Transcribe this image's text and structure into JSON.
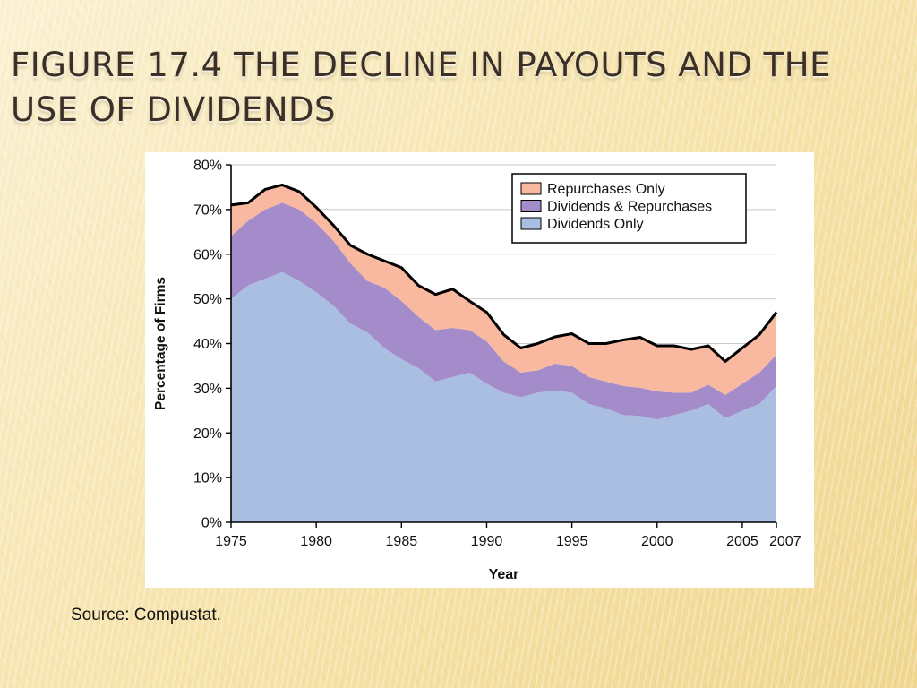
{
  "slide": {
    "title": "Figure 17.4  The Decline in Payouts and the Use of Dividends",
    "source": "Source: Compustat."
  },
  "chart_data": {
    "type": "area",
    "title": "",
    "xlabel": "Year",
    "ylabel": "Percentage of Firms",
    "xlim": [
      1975,
      2007
    ],
    "ylim": [
      0,
      80
    ],
    "x_ticks": [
      1975,
      1980,
      1985,
      1990,
      1995,
      2000,
      2005,
      2007
    ],
    "y_ticks": [
      {
        "value": 0,
        "label": "0%"
      },
      {
        "value": 10,
        "label": "10%"
      },
      {
        "value": 20,
        "label": "20%"
      },
      {
        "value": 30,
        "label": "30%"
      },
      {
        "value": 40,
        "label": "40%"
      },
      {
        "value": 50,
        "label": "50%"
      },
      {
        "value": 60,
        "label": "60%"
      },
      {
        "value": 70,
        "label": "70%"
      },
      {
        "value": 80,
        "label": "80%"
      }
    ],
    "grid": true,
    "stacked": true,
    "legend_position": "top-right",
    "x": [
      1975,
      1976,
      1977,
      1978,
      1979,
      1980,
      1981,
      1982,
      1983,
      1984,
      1985,
      1986,
      1987,
      1988,
      1989,
      1990,
      1991,
      1992,
      1993,
      1994,
      1995,
      1996,
      1997,
      1998,
      1999,
      2000,
      2001,
      2002,
      2003,
      2004,
      2005,
      2006,
      2007
    ],
    "series": [
      {
        "name": "Dividends Only",
        "color": "#a9bee0",
        "values": [
          50,
          53,
          54.5,
          56,
          54,
          51.5,
          48.5,
          44.5,
          42.5,
          39,
          36.5,
          34.5,
          31.5,
          32.5,
          33.5,
          31,
          29,
          28,
          29,
          29.5,
          29,
          26.5,
          25.5,
          24,
          23.8,
          23,
          24,
          25,
          26.5,
          23.3,
          25,
          26.5,
          30.5
        ]
      },
      {
        "name": "Dividends & Repurchases",
        "color": "#a48ccb",
        "values": [
          14,
          14.5,
          15.5,
          15.5,
          16,
          15.5,
          14.5,
          13.5,
          11.5,
          13.5,
          13,
          11.5,
          11.5,
          11,
          9.5,
          9.5,
          7,
          5.5,
          5,
          6,
          6,
          6,
          6,
          6.5,
          6.3,
          6.3,
          5,
          4,
          4.3,
          5.2,
          6,
          7,
          7
        ]
      },
      {
        "name": "Repurchases Only",
        "color": "#f9b9a0",
        "values": [
          7,
          4,
          4.5,
          4,
          4,
          3.5,
          3.5,
          4,
          6,
          6,
          7.5,
          7,
          8,
          8.7,
          6.5,
          6.5,
          6,
          5.5,
          6,
          6,
          7.2,
          7.5,
          8.5,
          10.3,
          11.3,
          10.2,
          10.5,
          9.7,
          8.7,
          7.5,
          8,
          8.5,
          9.5
        ]
      }
    ]
  }
}
